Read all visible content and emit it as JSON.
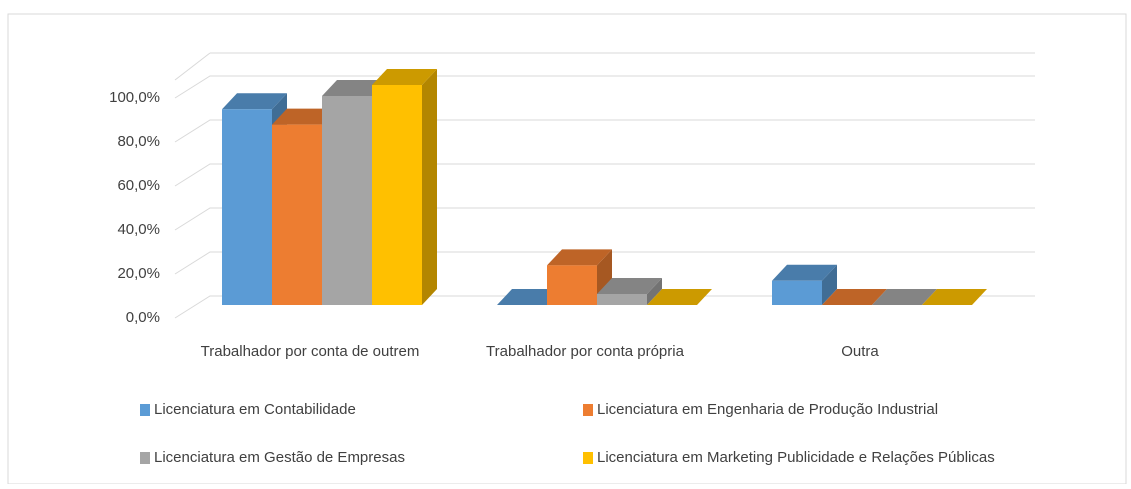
{
  "chart_data": {
    "type": "bar3d",
    "categories": [
      "Trabalhador por conta de outrem",
      "Trabalhador por conta própria",
      "Outra"
    ],
    "series": [
      {
        "name": "Licenciatura em Contabilidade",
        "color": "#5b9bd5",
        "values": [
          89,
          0,
          11
        ]
      },
      {
        "name": "Licenciatura em Engenharia de Produção Industrial",
        "color": "#ed7d31",
        "values": [
          82,
          18,
          0
        ]
      },
      {
        "name": "Licenciatura em Gestão de Empresas",
        "color": "#a5a5a5",
        "values": [
          95,
          5,
          0
        ]
      },
      {
        "name": "Licenciatura em Marketing Publicidade e Relações Públicas",
        "color": "#ffc000",
        "values": [
          100,
          0,
          0
        ]
      }
    ],
    "ylim": [
      0,
      100
    ],
    "yticks": [
      {
        "value": 0,
        "label": "0,0%"
      },
      {
        "value": 20,
        "label": "20,0%"
      },
      {
        "value": 40,
        "label": "40,0%"
      },
      {
        "value": 60,
        "label": "60,0%"
      },
      {
        "value": 80,
        "label": "80,0%"
      },
      {
        "value": 100,
        "label": "100,0%"
      }
    ],
    "grid": true
  }
}
